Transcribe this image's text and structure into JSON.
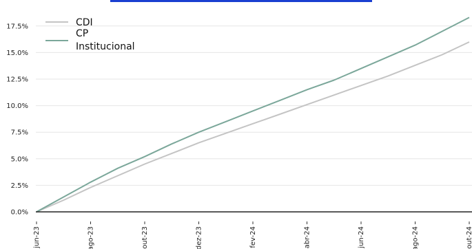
{
  "chart_data": {
    "type": "line",
    "title": "",
    "xlabel": "",
    "ylabel": "",
    "x_ticks": [
      "jun-23",
      "ago-23",
      "out-23",
      "dez-23",
      "fev-24",
      "abr-24",
      "jun-24",
      "ago-24",
      "out-24"
    ],
    "y_ticks": [
      "0.0%",
      "2.5%",
      "5.0%",
      "7.5%",
      "10.0%",
      "12.5%",
      "15.0%",
      "17.5%"
    ],
    "ylim": [
      0,
      18.5
    ],
    "xlim": [
      0,
      16
    ],
    "grid": "horizontal",
    "legend_position": "top-left",
    "x": [
      0,
      1,
      2,
      3,
      4,
      5,
      6,
      7,
      8,
      9,
      10,
      11,
      12,
      13,
      14,
      15,
      16
    ],
    "series": [
      {
        "name": "CDI",
        "color": "#c4c4c4",
        "values": [
          0.0,
          1.1,
          2.3,
          3.4,
          4.5,
          5.5,
          6.5,
          7.4,
          8.3,
          9.2,
          10.1,
          11.0,
          11.9,
          12.8,
          13.8,
          14.8,
          16.0
        ]
      },
      {
        "name": "CP Institucional",
        "color": "#7ba79a",
        "values": [
          0.0,
          1.4,
          2.8,
          4.1,
          5.2,
          6.4,
          7.5,
          8.5,
          9.5,
          10.5,
          11.5,
          12.4,
          13.5,
          14.6,
          15.7,
          17.0,
          18.3
        ]
      }
    ]
  },
  "legend": {
    "cdi_label": "CDI",
    "cp_label_line1": "CP",
    "cp_label_line2": "Institucional"
  }
}
